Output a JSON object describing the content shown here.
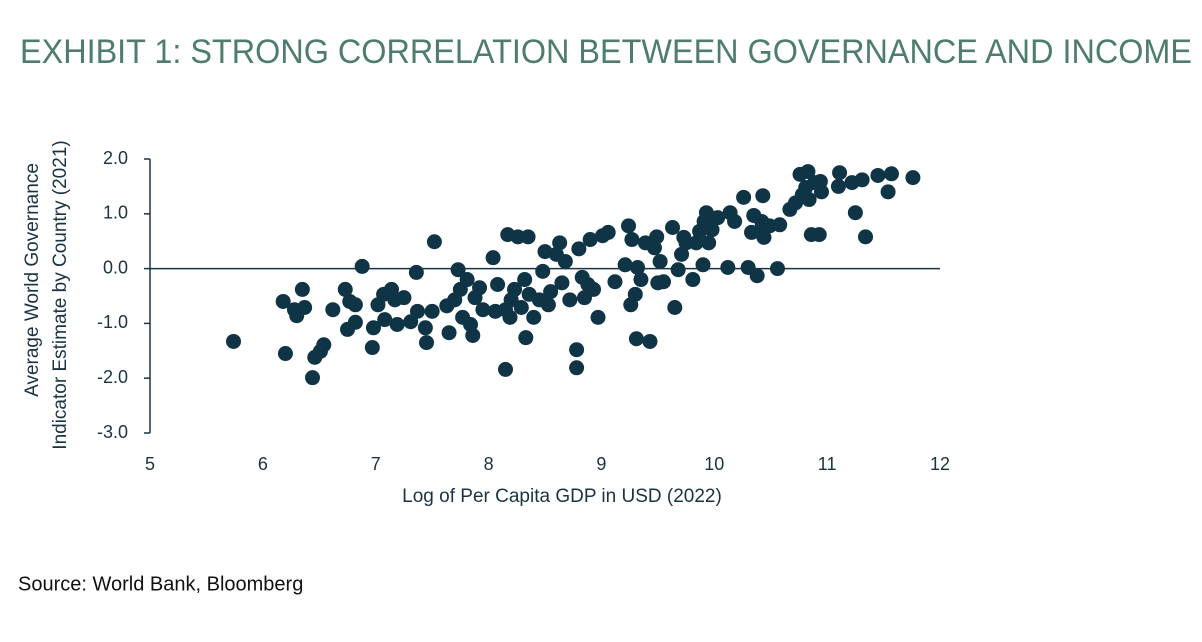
{
  "chart_data": {
    "type": "scatter",
    "title": "EXHIBIT 1: STRONG CORRELATION BETWEEN GOVERNANCE AND INCOME",
    "xlabel": "Log of Per Capita GDP in USD (2022)",
    "ylabel": [
      "Average World Governance",
      "Indicator Estimate by Country (2021)"
    ],
    "color": "#0f3446",
    "xlim": [
      5,
      12
    ],
    "ylim": [
      -3,
      2
    ],
    "xticks": [
      5,
      6,
      7,
      8,
      9,
      10,
      11,
      12
    ],
    "yticks": [
      {
        "value": 2,
        "label": "2.0"
      },
      {
        "value": 1,
        "label": "1.0"
      },
      {
        "value": 0,
        "label": "0.0"
      },
      {
        "value": -1,
        "label": "-1.0"
      },
      {
        "value": -2,
        "label": "-2.0"
      },
      {
        "value": -3,
        "label": "-3.0"
      }
    ],
    "x": [
      5.74,
      6.18,
      6.2,
      6.3,
      6.35,
      6.37,
      6.28,
      6.44,
      6.46,
      6.51,
      6.54,
      6.62,
      6.73,
      6.75,
      6.77,
      6.82,
      6.82,
      6.88,
      6.97,
      6.98,
      7.02,
      7.07,
      7.08,
      7.14,
      7.17,
      7.19,
      7.25,
      7.31,
      7.36,
      7.37,
      7.44,
      7.45,
      7.5,
      7.52,
      7.63,
      7.65,
      7.7,
      7.73,
      7.75,
      7.77,
      7.81,
      7.84,
      7.86,
      7.88,
      7.92,
      7.95,
      8.04,
      8.06,
      8.08,
      8.15,
      8.15,
      8.17,
      8.19,
      8.2,
      8.23,
      8.26,
      8.29,
      8.32,
      8.33,
      8.35,
      8.36,
      8.4,
      8.45,
      8.48,
      8.5,
      8.53,
      8.55,
      8.6,
      8.63,
      8.65,
      8.68,
      8.72,
      8.78,
      8.78,
      8.8,
      8.83,
      8.85,
      8.88,
      8.9,
      8.93,
      8.97,
      9.01,
      9.06,
      9.12,
      9.21,
      9.24,
      9.26,
      9.27,
      9.3,
      9.31,
      9.32,
      9.35,
      9.39,
      9.43,
      9.47,
      9.49,
      9.5,
      9.52,
      9.55,
      9.63,
      9.65,
      9.68,
      9.71,
      9.73,
      9.75,
      9.81,
      9.84,
      9.87,
      9.9,
      9.91,
      9.93,
      9.95,
      9.98,
      10.03,
      10.12,
      10.14,
      10.18,
      10.26,
      10.3,
      10.33,
      10.35,
      10.38,
      10.4,
      10.42,
      10.43,
      10.44,
      10.49,
      10.56,
      10.58,
      10.67,
      10.72,
      10.76,
      10.78,
      10.81,
      10.83,
      10.84,
      10.86,
      10.89,
      10.93,
      10.94,
      10.95,
      11.1,
      11.11,
      11.22,
      11.25,
      11.31,
      11.34,
      11.45,
      11.54,
      11.57,
      11.76
    ],
    "values": [
      -1.33,
      -0.6,
      -1.55,
      -0.86,
      -0.38,
      -0.71,
      -0.75,
      -1.99,
      -1.62,
      -1.51,
      -1.39,
      -0.75,
      -0.38,
      -1.11,
      -0.6,
      -0.66,
      -0.98,
      0.04,
      -1.44,
      -1.08,
      -0.66,
      -0.47,
      -0.93,
      -0.38,
      -0.57,
      -1.02,
      -0.53,
      -0.97,
      -0.07,
      -0.78,
      -1.08,
      -1.35,
      -0.78,
      0.49,
      -0.68,
      -1.17,
      -0.57,
      -0.02,
      -0.38,
      -0.89,
      -0.2,
      -1.02,
      -1.22,
      -0.53,
      -0.35,
      -0.75,
      0.2,
      -0.78,
      -0.29,
      -1.84,
      -0.75,
      0.62,
      -0.89,
      -0.57,
      -0.38,
      0.58,
      -0.71,
      -0.2,
      -1.26,
      0.58,
      -0.47,
      -0.89,
      -0.57,
      -0.05,
      0.31,
      -0.66,
      -0.42,
      0.26,
      0.47,
      -0.26,
      0.13,
      -0.57,
      -1.48,
      -1.81,
      0.36,
      -0.16,
      -0.53,
      -0.29,
      0.53,
      -0.38,
      -0.89,
      0.6,
      0.66,
      -0.24,
      0.07,
      0.78,
      -0.66,
      0.53,
      -0.47,
      -1.28,
      0.02,
      -0.2,
      0.47,
      -1.33,
      0.38,
      0.58,
      -0.26,
      0.13,
      -0.24,
      0.75,
      -0.71,
      -0.02,
      0.26,
      0.57,
      0.47,
      -0.2,
      0.47,
      0.68,
      0.07,
      0.86,
      1.02,
      0.47,
      0.71,
      0.93,
      0.02,
      1.02,
      0.86,
      1.3,
      0.02,
      0.66,
      0.97,
      -0.13,
      0.68,
      0.86,
      1.33,
      0.57,
      0.78,
      0.0,
      0.8,
      1.08,
      1.2,
      1.72,
      1.35,
      1.48,
      1.77,
      1.26,
      0.62,
      1.57,
      0.62,
      1.59,
      1.4,
      1.5,
      1.75,
      1.57,
      1.02,
      1.62,
      0.58,
      1.7,
      1.4,
      1.73,
      1.66
    ]
  },
  "source": "Source: World Bank, Bloomberg"
}
